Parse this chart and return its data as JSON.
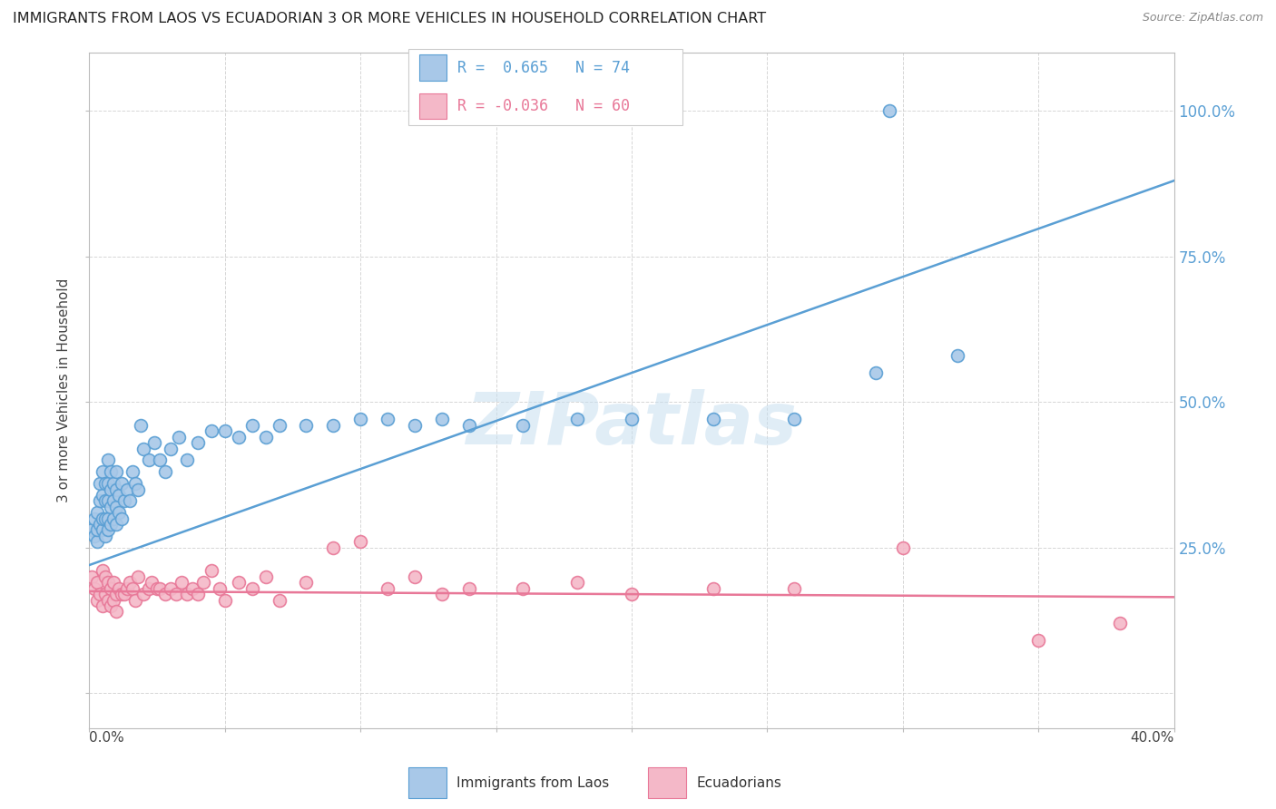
{
  "title": "IMMIGRANTS FROM LAOS VS ECUADORIAN 3 OR MORE VEHICLES IN HOUSEHOLD CORRELATION CHART",
  "source": "Source: ZipAtlas.com",
  "ylabel": "3 or more Vehicles in Household",
  "legend1_label": "Immigrants from Laos",
  "legend2_label": "Ecuadorians",
  "r1": 0.665,
  "n1": 74,
  "r2": -0.036,
  "n2": 60,
  "blue_color": "#a8c8e8",
  "blue_edge_color": "#5a9fd4",
  "pink_color": "#f4b8c8",
  "pink_edge_color": "#e87898",
  "blue_line_color": "#5a9fd4",
  "pink_line_color": "#e87898",
  "watermark": "ZIPatlas",
  "blue_scatter_x": [
    0.001,
    0.002,
    0.002,
    0.003,
    0.003,
    0.003,
    0.004,
    0.004,
    0.004,
    0.005,
    0.005,
    0.005,
    0.005,
    0.006,
    0.006,
    0.006,
    0.006,
    0.007,
    0.007,
    0.007,
    0.007,
    0.007,
    0.008,
    0.008,
    0.008,
    0.008,
    0.009,
    0.009,
    0.009,
    0.01,
    0.01,
    0.01,
    0.01,
    0.011,
    0.011,
    0.012,
    0.012,
    0.013,
    0.014,
    0.015,
    0.016,
    0.017,
    0.018,
    0.019,
    0.02,
    0.022,
    0.024,
    0.026,
    0.028,
    0.03,
    0.033,
    0.036,
    0.04,
    0.045,
    0.05,
    0.055,
    0.06,
    0.065,
    0.07,
    0.08,
    0.09,
    0.1,
    0.11,
    0.12,
    0.13,
    0.14,
    0.16,
    0.18,
    0.2,
    0.23,
    0.26,
    0.29,
    0.32,
    0.295
  ],
  "blue_scatter_y": [
    0.28,
    0.27,
    0.3,
    0.26,
    0.28,
    0.31,
    0.29,
    0.33,
    0.36,
    0.28,
    0.3,
    0.34,
    0.38,
    0.27,
    0.3,
    0.33,
    0.36,
    0.28,
    0.3,
    0.33,
    0.36,
    0.4,
    0.29,
    0.32,
    0.35,
    0.38,
    0.3,
    0.33,
    0.36,
    0.29,
    0.32,
    0.35,
    0.38,
    0.31,
    0.34,
    0.3,
    0.36,
    0.33,
    0.35,
    0.33,
    0.38,
    0.36,
    0.35,
    0.46,
    0.42,
    0.4,
    0.43,
    0.4,
    0.38,
    0.42,
    0.44,
    0.4,
    0.43,
    0.45,
    0.45,
    0.44,
    0.46,
    0.44,
    0.46,
    0.46,
    0.46,
    0.47,
    0.47,
    0.46,
    0.47,
    0.46,
    0.46,
    0.47,
    0.47,
    0.47,
    0.47,
    0.55,
    0.58,
    1.0
  ],
  "pink_scatter_x": [
    0.001,
    0.002,
    0.003,
    0.003,
    0.004,
    0.005,
    0.005,
    0.006,
    0.006,
    0.007,
    0.007,
    0.008,
    0.008,
    0.009,
    0.009,
    0.01,
    0.01,
    0.011,
    0.012,
    0.013,
    0.014,
    0.015,
    0.016,
    0.017,
    0.018,
    0.02,
    0.022,
    0.023,
    0.025,
    0.026,
    0.028,
    0.03,
    0.032,
    0.034,
    0.036,
    0.038,
    0.04,
    0.042,
    0.045,
    0.048,
    0.05,
    0.055,
    0.06,
    0.065,
    0.07,
    0.08,
    0.09,
    0.1,
    0.11,
    0.12,
    0.13,
    0.14,
    0.16,
    0.18,
    0.2,
    0.23,
    0.26,
    0.3,
    0.35,
    0.38
  ],
  "pink_scatter_y": [
    0.2,
    0.18,
    0.16,
    0.19,
    0.17,
    0.21,
    0.15,
    0.17,
    0.2,
    0.16,
    0.19,
    0.15,
    0.18,
    0.16,
    0.19,
    0.14,
    0.17,
    0.18,
    0.17,
    0.17,
    0.18,
    0.19,
    0.18,
    0.16,
    0.2,
    0.17,
    0.18,
    0.19,
    0.18,
    0.18,
    0.17,
    0.18,
    0.17,
    0.19,
    0.17,
    0.18,
    0.17,
    0.19,
    0.21,
    0.18,
    0.16,
    0.19,
    0.18,
    0.2,
    0.16,
    0.19,
    0.25,
    0.26,
    0.18,
    0.2,
    0.17,
    0.18,
    0.18,
    0.19,
    0.17,
    0.18,
    0.18,
    0.25,
    0.09,
    0.12
  ],
  "blue_line_x": [
    0.0,
    0.4
  ],
  "blue_line_y": [
    0.22,
    0.88
  ],
  "pink_line_x": [
    0.0,
    0.4
  ],
  "pink_line_y": [
    0.175,
    0.165
  ],
  "xlim": [
    0.0,
    0.4
  ],
  "ylim": [
    -0.06,
    1.1
  ],
  "x_ticks": [
    0.0,
    0.05,
    0.1,
    0.15,
    0.2,
    0.25,
    0.3,
    0.35,
    0.4
  ],
  "y_ticks": [
    0.0,
    0.25,
    0.5,
    0.75,
    1.0
  ]
}
